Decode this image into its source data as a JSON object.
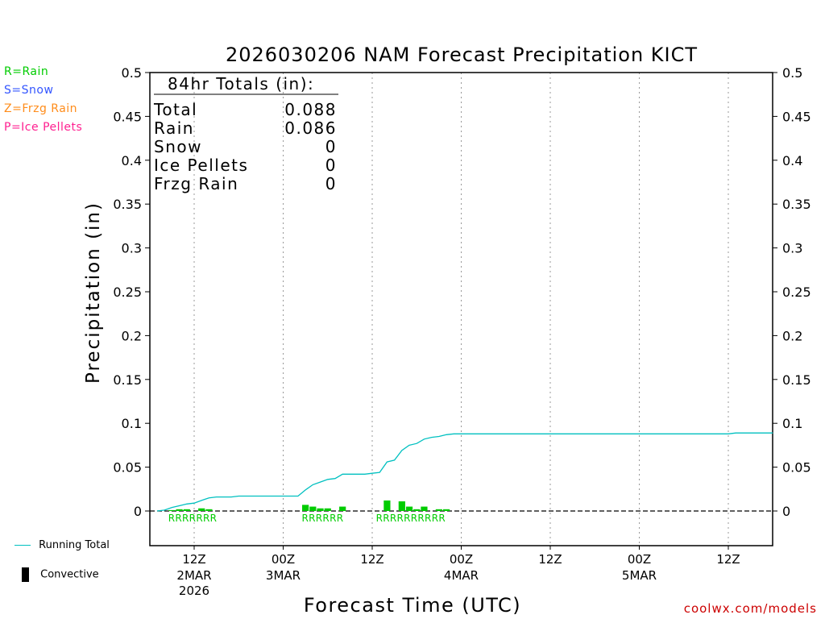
{
  "chart_data": {
    "type": "bar+line",
    "title": "2026030206 NAM Forecast Precipitation KICT",
    "xlabel": "Forecast Time (UTC)",
    "ylabel": "Precipitation (in)",
    "ylim": [
      -0.04,
      0.5
    ],
    "yticks": [
      0.5,
      0.45,
      0.4,
      0.35,
      0.3,
      0.25,
      0.2,
      0.15,
      0.1,
      0.05,
      0
    ],
    "ytick_labels": [
      "0.5",
      "0.45",
      "0.4",
      "0.35",
      "0.3",
      "0.25",
      "0.2",
      "0.15",
      "0.1",
      "0.05",
      "0"
    ],
    "x_range_hours": [
      6,
      90
    ],
    "x_ticks": [
      {
        "hour": 12,
        "line1": "12Z",
        "line2": "2MAR",
        "line3": "2026"
      },
      {
        "hour": 24,
        "line1": "00Z",
        "line2": "3MAR",
        "line3": ""
      },
      {
        "hour": 36,
        "line1": "12Z",
        "line2": "",
        "line3": ""
      },
      {
        "hour": 48,
        "line1": "00Z",
        "line2": "4MAR",
        "line3": ""
      },
      {
        "hour": 60,
        "line1": "12Z",
        "line2": "",
        "line3": ""
      },
      {
        "hour": 72,
        "line1": "00Z",
        "line2": "5MAR",
        "line3": ""
      },
      {
        "hour": 84,
        "line1": "12Z",
        "line2": "",
        "line3": ""
      }
    ],
    "totals_box": {
      "header": "84hr Totals (in):",
      "rows": [
        {
          "label": "Total",
          "value": "0.088"
        },
        {
          "label": "Rain",
          "value": "0.086"
        },
        {
          "label": "Snow",
          "value": "0"
        },
        {
          "label": "Ice Pellets",
          "value": "0"
        },
        {
          "label": "Frzg Rain",
          "value": "0"
        }
      ]
    },
    "series": [
      {
        "name": "Running Total",
        "type": "line",
        "color": "#00c0c0",
        "points": [
          [
            7,
            0
          ],
          [
            8,
            0.001
          ],
          [
            9,
            0.004
          ],
          [
            10,
            0.006
          ],
          [
            11,
            0.008
          ],
          [
            12,
            0.009
          ],
          [
            13,
            0.012
          ],
          [
            14,
            0.015
          ],
          [
            15,
            0.016
          ],
          [
            16,
            0.016
          ],
          [
            17,
            0.016
          ],
          [
            18,
            0.017
          ],
          [
            20,
            0.017
          ],
          [
            22,
            0.017
          ],
          [
            24,
            0.017
          ],
          [
            26,
            0.017
          ],
          [
            27,
            0.024
          ],
          [
            28,
            0.03
          ],
          [
            29,
            0.033
          ],
          [
            30,
            0.036
          ],
          [
            31,
            0.037
          ],
          [
            32,
            0.042
          ],
          [
            33,
            0.042
          ],
          [
            34,
            0.042
          ],
          [
            35,
            0.042
          ],
          [
            36,
            0.043
          ],
          [
            37,
            0.044
          ],
          [
            38,
            0.056
          ],
          [
            39,
            0.058
          ],
          [
            40,
            0.069
          ],
          [
            41,
            0.075
          ],
          [
            42,
            0.077
          ],
          [
            43,
            0.082
          ],
          [
            44,
            0.084
          ],
          [
            45,
            0.085
          ],
          [
            46,
            0.087
          ],
          [
            47,
            0.088
          ],
          [
            60,
            0.088
          ],
          [
            84,
            0.088
          ],
          [
            85,
            0.089
          ],
          [
            87,
            0.089
          ],
          [
            90,
            0.089
          ]
        ]
      },
      {
        "name": "Rain",
        "type": "bar",
        "color": "#00cc00",
        "bars": [
          [
            9,
            0.001
          ],
          [
            10,
            0.002
          ],
          [
            11,
            0.002
          ],
          [
            13,
            0.003
          ],
          [
            14,
            0.002
          ],
          [
            27,
            0.007
          ],
          [
            28,
            0.005
          ],
          [
            29,
            0.003
          ],
          [
            30,
            0.003
          ],
          [
            32,
            0.005
          ],
          [
            38,
            0.012
          ],
          [
            40,
            0.011
          ],
          [
            41,
            0.005
          ],
          [
            42,
            0.002
          ],
          [
            43,
            0.005
          ],
          [
            45,
            0.002
          ],
          [
            46,
            0.002
          ]
        ]
      }
    ],
    "ptype_markers": [
      {
        "text": "RRRRRRR",
        "start_hour": 8.5
      },
      {
        "text": "RRRRRR",
        "start_hour": 26.5
      },
      {
        "text": "RRRRRRRRRR",
        "start_hour": 36.5
      }
    ],
    "legend_left": [
      {
        "text": "R=Rain",
        "color": "#00cc00"
      },
      {
        "text": "S=Snow",
        "color": "#3355ff"
      },
      {
        "text": "Z=Frzg Rain",
        "color": "#ff8c1a"
      },
      {
        "text": "P=Ice Pellets",
        "color": "#ff2090"
      }
    ],
    "legend_bottom": [
      {
        "text": "Running Total",
        "color": "#00c0c0",
        "symbol": "line"
      },
      {
        "text": "Convective",
        "color": "#000000",
        "symbol": "bar"
      }
    ],
    "credit": "coolwx.com/models"
  }
}
